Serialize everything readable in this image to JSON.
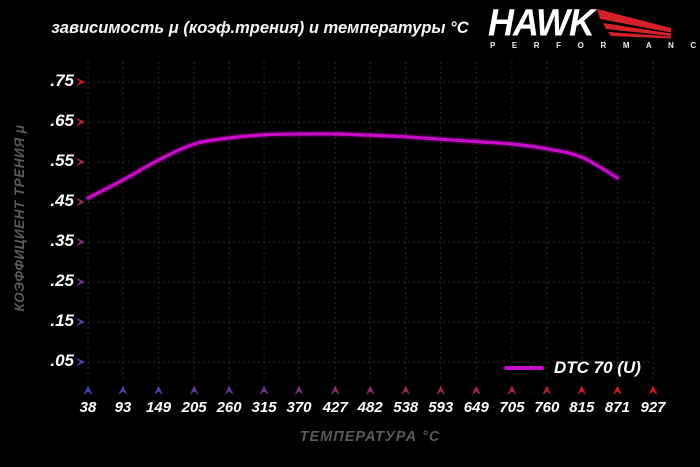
{
  "header": {
    "title": "зависимость μ (коэф.трения) и температуры °C"
  },
  "logo": {
    "brand": "HAWK",
    "sub": "P E R F O R M A N C E",
    "wing_color": "#d8202a"
  },
  "colors": {
    "background": "#000000",
    "text": "#f5f5f5",
    "muted": "#5a5a5a",
    "grid": "#262b26",
    "curve": "#cb0bcb",
    "axis_near_origin": "#4343b8",
    "axis_far": "#d41717"
  },
  "chart_data": {
    "type": "line",
    "title": "зависимость μ (коэф.трения) и температуры °C",
    "xlabel": "ТЕМПЕРАТУРА °C",
    "ylabel": "КОЭФФИЦИЕНТ ТРЕНИЯ μ",
    "xlim": [
      38,
      927
    ],
    "ylim": [
      0,
      0.8
    ],
    "grid": true,
    "x_ticks": [
      38,
      93,
      149,
      205,
      260,
      315,
      370,
      427,
      482,
      538,
      593,
      649,
      705,
      760,
      815,
      871,
      927
    ],
    "y_ticks": [
      ".05",
      ".15",
      ".25",
      ".35",
      ".45",
      ".55",
      ".65",
      ".75"
    ],
    "y_tick_values": [
      0.05,
      0.15,
      0.25,
      0.35,
      0.45,
      0.55,
      0.65,
      0.75
    ],
    "legend": {
      "position": "bottom-right",
      "label": "DTC 70 (U)"
    },
    "series": [
      {
        "name": "DTC 70 (U)",
        "color": "#cb0bcb",
        "x": [
          38,
          93,
          149,
          205,
          260,
          315,
          370,
          427,
          482,
          538,
          593,
          649,
          705,
          760,
          815,
          871
        ],
        "y": [
          0.46,
          0.505,
          0.555,
          0.595,
          0.61,
          0.618,
          0.62,
          0.62,
          0.617,
          0.613,
          0.607,
          0.601,
          0.595,
          0.583,
          0.562,
          0.51
        ]
      }
    ]
  }
}
